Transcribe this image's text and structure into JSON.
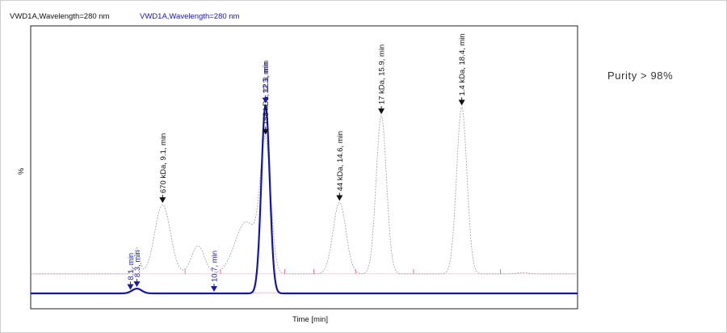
{
  "chart_data": {
    "type": "line",
    "title_black": "VWD1A,Wavelength=280 nm",
    "title_blue": "VWD1A,Wavelength=280 nm",
    "xlabel": "Time [min]",
    "ylabel": "%",
    "annotation": "Purity > 98%",
    "xlim": [
      5.0,
      22.0
    ],
    "ylim": [
      0,
      100
    ],
    "grid": false,
    "colors": {
      "standard": "#a8a8a8",
      "sample": "#1414b4",
      "black_label": "#111111",
      "blue_label": "#1a1aa8",
      "baseline_marker": "#e0508c"
    },
    "series": [
      {
        "key": "standard",
        "baseline": 9.0,
        "peaks": [
          {
            "t": 8.3,
            "h": 12,
            "w": 0.09
          },
          {
            "t": 9.1,
            "h": 32,
            "w": 0.24
          },
          {
            "t": 10.2,
            "h": 13,
            "w": 0.2
          },
          {
            "t": 11.7,
            "h": 24,
            "w": 0.35
          },
          {
            "t": 12.3,
            "h": 58,
            "w": 0.16
          },
          {
            "t": 14.6,
            "h": 33,
            "w": 0.2
          },
          {
            "t": 15.9,
            "h": 73,
            "w": 0.16
          },
          {
            "t": 18.4,
            "h": 77,
            "w": 0.16
          },
          {
            "t": 20.3,
            "h": 0.6,
            "w": 0.18
          }
        ]
      },
      {
        "key": "sample",
        "baseline": 0.0,
        "peaks": [
          {
            "t": 8.3,
            "h": 2.2,
            "w": 0.15
          },
          {
            "t": 12.3,
            "h": 87,
            "w": 0.13
          }
        ]
      }
    ],
    "labels": [
      {
        "text": "670 kDa, 9.1, min",
        "t": 9.1,
        "series": "standard",
        "color": "black"
      },
      {
        "text": "158 kDa, 12.3, min",
        "t": 12.3,
        "series": "standard",
        "color": "black"
      },
      {
        "text": "44 kDa, 14.6, min",
        "t": 14.6,
        "series": "standard",
        "color": "black"
      },
      {
        "text": "17 kDa, 15.9, min",
        "t": 15.9,
        "series": "standard",
        "color": "black"
      },
      {
        "text": "1.4 kDa, 18.4, min",
        "t": 18.4,
        "series": "standard",
        "color": "black"
      },
      {
        "text": "8.1, min",
        "t": 8.1,
        "series": "sample",
        "color": "blue"
      },
      {
        "text": "8.3, min",
        "t": 8.3,
        "series": "sample",
        "color": "blue"
      },
      {
        "text": "10.7, min",
        "t": 10.7,
        "series": "sample",
        "color": "blue"
      },
      {
        "text": "12.3, min",
        "t": 12.3,
        "series": "sample",
        "color": "blue"
      }
    ],
    "integration_marks": [
      9.8,
      10.9,
      12.9,
      13.8,
      15.1,
      16.9,
      19.6
    ]
  }
}
